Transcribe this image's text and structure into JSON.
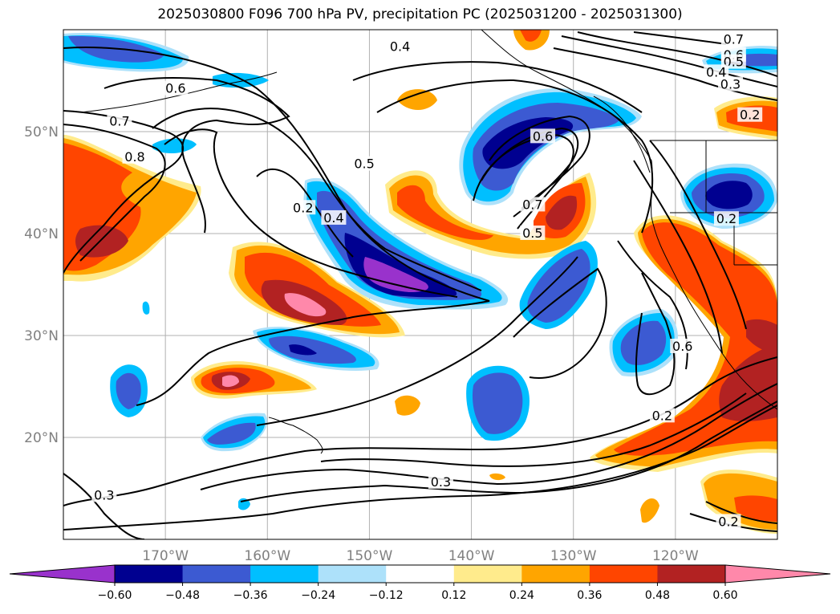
{
  "title": "2025030800 F096 700 hPa PV, precipitation PC (2025031200 - 2025031300)",
  "map": {
    "lon_range": [
      -180,
      -110
    ],
    "lat_range": [
      10,
      60
    ],
    "lon_ticks": [
      {
        "value": -170,
        "label": "170°W"
      },
      {
        "value": -160,
        "label": "160°W"
      },
      {
        "value": -150,
        "label": "150°W"
      },
      {
        "value": -140,
        "label": "140°W"
      },
      {
        "value": -130,
        "label": "130°W"
      },
      {
        "value": -120,
        "label": "120°W"
      }
    ],
    "lat_ticks": [
      {
        "value": 20,
        "label": "20°N"
      },
      {
        "value": 30,
        "label": "30°N"
      },
      {
        "value": 40,
        "label": "40°N"
      },
      {
        "value": 50,
        "label": "50°N"
      }
    ],
    "grid": true,
    "contour_labels": [
      {
        "text": "0.4",
        "lon": -147,
        "lat": 58.3
      },
      {
        "text": "0.6",
        "lon": -169,
        "lat": 54.2
      },
      {
        "text": "0.7",
        "lon": -174.5,
        "lat": 51.0
      },
      {
        "text": "0.8",
        "lon": -173,
        "lat": 47.5
      },
      {
        "text": "0.5",
        "lon": -150.5,
        "lat": 46.8
      },
      {
        "text": "0.2",
        "lon": -156.5,
        "lat": 42.5
      },
      {
        "text": "0.4",
        "lon": -153.5,
        "lat": 41.5
      },
      {
        "text": "0.6",
        "lon": -133,
        "lat": 49.5
      },
      {
        "text": "0.7",
        "lon": -134,
        "lat": 42.8
      },
      {
        "text": "0.5",
        "lon": -134,
        "lat": 40.0
      },
      {
        "text": "0.7",
        "lon": -114.3,
        "lat": 59.0
      },
      {
        "text": "0.6",
        "lon": -114.3,
        "lat": 57.5
      },
      {
        "text": "0.5",
        "lon": -114.3,
        "lat": 56.8
      },
      {
        "text": "0.4",
        "lon": -116,
        "lat": 55.8
      },
      {
        "text": "0.3",
        "lon": -114.6,
        "lat": 54.6
      },
      {
        "text": "0.2",
        "lon": -112.7,
        "lat": 51.6
      },
      {
        "text": "0.2",
        "lon": -115,
        "lat": 41.4
      },
      {
        "text": "0.6",
        "lon": -119.3,
        "lat": 28.9
      },
      {
        "text": "0.2",
        "lon": -121.3,
        "lat": 22.1
      },
      {
        "text": "0.3",
        "lon": -143,
        "lat": 15.6
      },
      {
        "text": "0.3",
        "lon": -176,
        "lat": 14.3
      },
      {
        "text": "0.2",
        "lon": -114.8,
        "lat": 11.7
      }
    ]
  },
  "colorbar": {
    "colors": [
      "#9932CC",
      "#000090",
      "#3C5AD2",
      "#00BFFF",
      "#ADE1FA",
      "#FFFFFF",
      "#FFEB8C",
      "#FFA500",
      "#FF4500",
      "#B22222",
      "#FF88AA"
    ],
    "tick_labels": [
      "−0.60",
      "−0.48",
      "−0.36",
      "−0.24",
      "−0.12",
      "0.12",
      "0.24",
      "0.36",
      "0.48",
      "0.60"
    ]
  }
}
